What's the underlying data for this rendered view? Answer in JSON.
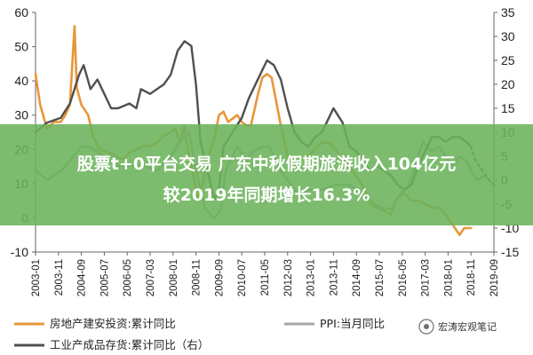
{
  "headline": {
    "line1": "股票t+0平台交易 广东中秋假期旅游收入104亿元",
    "line2": "较2019年同期增长16.3%"
  },
  "watermark": {
    "text": "宏涛宏观笔记"
  },
  "colors": {
    "orange": "#E8973A",
    "gray": "#A6A6A6",
    "dark": "#505050",
    "banner": "#6BB35A"
  },
  "chart_data": {
    "type": "line",
    "x_tick_labels": [
      "2003-01",
      "2003-11",
      "2004-09",
      "2005-07",
      "2006-05",
      "2007-03",
      "2008-01",
      "2008-11",
      "2009-09",
      "2010-07",
      "2011-05",
      "2012-03",
      "2013-01",
      "2013-11",
      "2014-09",
      "2015-07",
      "2016-05",
      "2017-03",
      "2018-01",
      "2018-11",
      "2019-09"
    ],
    "x_range": [
      "2003-01",
      "2019-09"
    ],
    "left_axis": {
      "range": [
        -10,
        60
      ],
      "ticks": [
        "-10",
        "0",
        "10",
        "20",
        "30",
        "40",
        "50",
        "60"
      ]
    },
    "right_axis": {
      "range": [
        -15,
        35
      ],
      "ticks": [
        "-15",
        "-10",
        "-5",
        "0",
        "5",
        "10",
        "15",
        "20",
        "25",
        "30",
        "35"
      ]
    },
    "grid": false,
    "legend_position": "bottom",
    "series": [
      {
        "name": "房地产建安投资:累计同比",
        "axis": "left",
        "color": "orange",
        "points": [
          [
            "2003-01",
            42
          ],
          [
            "2003-03",
            33
          ],
          [
            "2003-06",
            26
          ],
          [
            "2003-09",
            28
          ],
          [
            "2003-12",
            28
          ],
          [
            "2004-02",
            30
          ],
          [
            "2004-04",
            33
          ],
          [
            "2004-06",
            56
          ],
          [
            "2004-07",
            38
          ],
          [
            "2004-09",
            33
          ],
          [
            "2004-12",
            30
          ],
          [
            "2005-02",
            24
          ],
          [
            "2005-05",
            20
          ],
          [
            "2005-09",
            19
          ],
          [
            "2005-12",
            18
          ],
          [
            "2006-03",
            17
          ],
          [
            "2006-06",
            19
          ],
          [
            "2006-09",
            20
          ],
          [
            "2006-12",
            21
          ],
          [
            "2007-03",
            21
          ],
          [
            "2007-06",
            22
          ],
          [
            "2007-09",
            24
          ],
          [
            "2007-12",
            25
          ],
          [
            "2008-02",
            26
          ],
          [
            "2008-04",
            22
          ],
          [
            "2008-06",
            27
          ],
          [
            "2008-08",
            17
          ],
          [
            "2008-10",
            12
          ],
          [
            "2008-12",
            5
          ],
          [
            "2009-02",
            10
          ],
          [
            "2009-04",
            17
          ],
          [
            "2009-07",
            23
          ],
          [
            "2009-09",
            30
          ],
          [
            "2009-11",
            31
          ],
          [
            "2010-01",
            28
          ],
          [
            "2010-03",
            29
          ],
          [
            "2010-05",
            30
          ],
          [
            "2010-07",
            28
          ],
          [
            "2010-09",
            27
          ],
          [
            "2010-11",
            27
          ],
          [
            "2011-02",
            36
          ],
          [
            "2011-04",
            41
          ],
          [
            "2011-06",
            42
          ],
          [
            "2011-08",
            41
          ],
          [
            "2011-10",
            34
          ],
          [
            "2011-12",
            27
          ],
          [
            "2012-03",
            18
          ],
          [
            "2012-06",
            15
          ],
          [
            "2012-09",
            17
          ],
          [
            "2012-12",
            18
          ],
          [
            "2013-03",
            20
          ],
          [
            "2013-06",
            22
          ],
          [
            "2013-09",
            22
          ],
          [
            "2013-12",
            20
          ],
          [
            "2014-03",
            17
          ],
          [
            "2014-06",
            15
          ],
          [
            "2014-09",
            12
          ],
          [
            "2014-12",
            9
          ],
          [
            "2015-03",
            4
          ],
          [
            "2015-06",
            3
          ],
          [
            "2015-09",
            2
          ],
          [
            "2015-12",
            1
          ],
          [
            "2016-03",
            6
          ],
          [
            "2016-06",
            7
          ],
          [
            "2016-09",
            5
          ],
          [
            "2016-12",
            5
          ],
          [
            "2017-03",
            4
          ],
          [
            "2017-06",
            3
          ],
          [
            "2017-09",
            3
          ],
          [
            "2017-12",
            1
          ],
          [
            "2018-03",
            -2
          ],
          [
            "2018-06",
            -5
          ],
          [
            "2018-08",
            -3
          ],
          [
            "2018-11",
            -3
          ]
        ]
      },
      {
        "name": "PPI:当月同比",
        "axis": "right",
        "color": "gray",
        "points": [
          [
            "2003-01",
            2
          ],
          [
            "2003-06",
            0
          ],
          [
            "2003-12",
            2
          ],
          [
            "2004-04",
            4
          ],
          [
            "2004-09",
            7
          ],
          [
            "2004-12",
            7
          ],
          [
            "2005-04",
            6
          ],
          [
            "2005-09",
            4
          ],
          [
            "2005-12",
            3
          ],
          [
            "2006-06",
            3
          ],
          [
            "2006-12",
            3
          ],
          [
            "2007-06",
            2
          ],
          [
            "2007-12",
            5
          ],
          [
            "2008-04",
            8
          ],
          [
            "2008-08",
            10
          ],
          [
            "2008-11",
            2
          ],
          [
            "2009-03",
            -6
          ],
          [
            "2009-07",
            -8
          ],
          [
            "2009-10",
            -6
          ],
          [
            "2009-12",
            2
          ],
          [
            "2010-05",
            7
          ],
          [
            "2010-09",
            4
          ],
          [
            "2010-12",
            6
          ],
          [
            "2011-04",
            7
          ],
          [
            "2011-07",
            7
          ],
          [
            "2011-12",
            2
          ],
          [
            "2012-06",
            -2
          ],
          [
            "2012-09",
            -3
          ],
          [
            "2012-12",
            -2
          ],
          [
            "2013-06",
            -2
          ],
          [
            "2013-12",
            -1
          ],
          [
            "2014-06",
            -1
          ],
          [
            "2014-12",
            -3
          ],
          [
            "2015-05",
            -5
          ],
          [
            "2015-09",
            -6
          ],
          [
            "2015-12",
            -6
          ],
          [
            "2016-04",
            -3
          ],
          [
            "2016-08",
            -1
          ],
          [
            "2016-12",
            5
          ],
          [
            "2017-02",
            8
          ],
          [
            "2017-06",
            6
          ],
          [
            "2017-09",
            7
          ],
          [
            "2017-12",
            5
          ],
          [
            "2018-03",
            3
          ],
          [
            "2018-06",
            5
          ],
          [
            "2018-09",
            4
          ],
          [
            "2018-12",
            1
          ],
          [
            "2019-02",
            0
          ],
          [
            "2019-05",
            1
          ],
          [
            "2019-09",
            -1
          ]
        ]
      },
      {
        "name": "工业产成品存货:累计同比（右）",
        "axis": "right",
        "color": "dark",
        "points": [
          [
            "2003-01",
            10
          ],
          [
            "2003-06",
            12
          ],
          [
            "2003-12",
            13
          ],
          [
            "2004-04",
            16
          ],
          [
            "2004-08",
            22
          ],
          [
            "2004-10",
            24
          ],
          [
            "2005-01",
            19
          ],
          [
            "2005-04",
            21
          ],
          [
            "2005-07",
            18
          ],
          [
            "2005-10",
            15
          ],
          [
            "2006-01",
            15
          ],
          [
            "2006-06",
            16
          ],
          [
            "2006-09",
            15
          ],
          [
            "2006-11",
            19
          ],
          [
            "2007-03",
            18
          ],
          [
            "2007-06",
            19
          ],
          [
            "2007-09",
            20
          ],
          [
            "2007-12",
            22
          ],
          [
            "2008-03",
            27
          ],
          [
            "2008-06",
            29
          ],
          [
            "2008-09",
            28
          ],
          [
            "2008-11",
            20
          ],
          [
            "2009-01",
            8
          ],
          [
            "2009-04",
            2
          ],
          [
            "2009-07",
            -4
          ],
          [
            "2009-09",
            -2
          ],
          [
            "2009-11",
            7
          ],
          [
            "2010-03",
            10
          ],
          [
            "2010-07",
            13
          ],
          [
            "2010-10",
            17
          ],
          [
            "2011-03",
            22
          ],
          [
            "2011-06",
            25
          ],
          [
            "2011-09",
            24
          ],
          [
            "2011-12",
            21
          ],
          [
            "2012-03",
            15
          ],
          [
            "2012-06",
            10
          ],
          [
            "2012-09",
            8
          ],
          [
            "2012-12",
            7
          ],
          [
            "2013-03",
            9
          ],
          [
            "2013-06",
            10
          ],
          [
            "2013-09",
            13
          ],
          [
            "2013-11",
            15
          ],
          [
            "2014-03",
            12
          ],
          [
            "2014-06",
            7
          ],
          [
            "2014-09",
            6
          ],
          [
            "2014-12",
            4
          ],
          [
            "2015-03",
            2
          ],
          [
            "2015-06",
            3
          ],
          [
            "2015-09",
            2
          ],
          [
            "2015-12",
            1
          ],
          [
            "2016-03",
            -1
          ],
          [
            "2016-06",
            -2
          ],
          [
            "2016-09",
            -1
          ],
          [
            "2016-12",
            3
          ],
          [
            "2017-03",
            6
          ],
          [
            "2017-06",
            9
          ],
          [
            "2017-09",
            9
          ],
          [
            "2017-12",
            8
          ],
          [
            "2018-03",
            9
          ],
          [
            "2018-06",
            9
          ],
          [
            "2018-09",
            8
          ],
          [
            "2018-11",
            7
          ]
        ]
      },
      {
        "name": "工业产成品存货:累计同比（右）",
        "axis": "right",
        "color": "dark",
        "dashed": true,
        "points": [
          [
            "2018-11",
            7
          ],
          [
            "2019-01",
            4
          ],
          [
            "2019-04",
            2
          ],
          [
            "2019-07",
            0
          ],
          [
            "2019-09",
            -1
          ]
        ]
      }
    ],
    "legend": [
      {
        "label": "房地产建安投资:累计同比",
        "color": "orange"
      },
      {
        "label": "PPI:当月同比",
        "color": "gray"
      },
      {
        "label": "工业产成品存货:累计同比（右）",
        "color": "dark"
      }
    ]
  }
}
